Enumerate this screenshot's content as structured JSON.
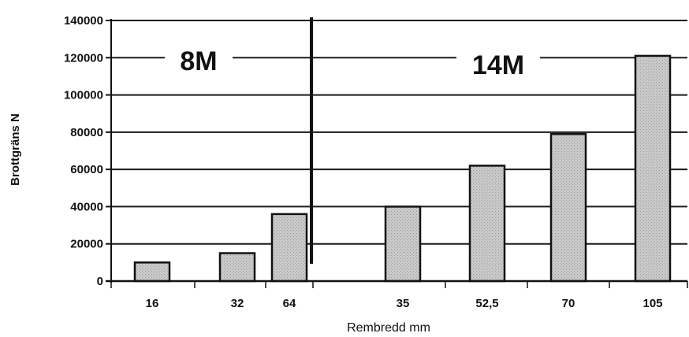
{
  "chart_data": {
    "type": "bar",
    "title": "",
    "xlabel": "Rembredd mm",
    "ylabel": "Brottgräns N",
    "ylim": [
      0,
      140000
    ],
    "yticks": [
      "0",
      "20000",
      "40000",
      "60000",
      "80000",
      "100000",
      "120000",
      "140000"
    ],
    "categories": [
      "16",
      "32",
      "64",
      "35",
      "52,5",
      "70",
      "105"
    ],
    "values": [
      10000,
      15000,
      36000,
      40000,
      62000,
      79000,
      121000
    ],
    "groups": [
      {
        "label": "8M",
        "categories": [
          "16",
          "32",
          "64"
        ]
      },
      {
        "label": "14M",
        "categories": [
          "35",
          "52,5",
          "70",
          "105"
        ]
      }
    ],
    "grid": true,
    "bar_color": "#c4c4c4"
  }
}
